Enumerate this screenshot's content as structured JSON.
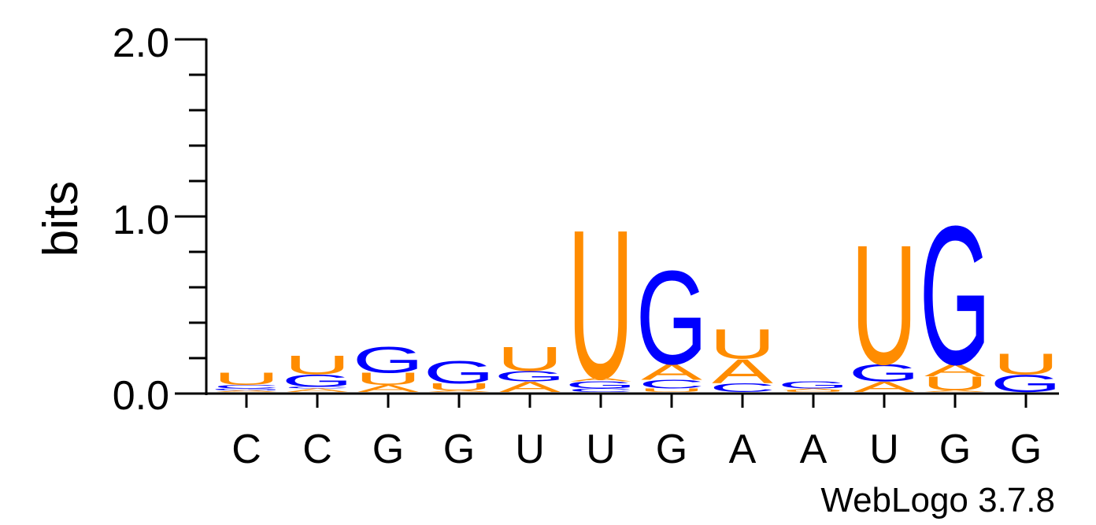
{
  "chart_data": {
    "type": "sequence-logo",
    "ylabel": "bits",
    "ylim": [
      0,
      2
    ],
    "yticks": [
      "0.0",
      "1.0",
      "2.0"
    ],
    "positions": [
      "C",
      "C",
      "G",
      "G",
      "U",
      "U",
      "G",
      "A",
      "A",
      "U",
      "G",
      "G"
    ],
    "stacks": [
      [
        {
          "letter": "A",
          "bits": 0.01
        },
        {
          "letter": "G",
          "bits": 0.01
        },
        {
          "letter": "C",
          "bits": 0.02
        },
        {
          "letter": "U",
          "bits": 0.07
        }
      ],
      [
        {
          "letter": "A",
          "bits": 0.02
        },
        {
          "letter": "C",
          "bits": 0.01
        },
        {
          "letter": "G",
          "bits": 0.07
        },
        {
          "letter": "U",
          "bits": 0.11
        }
      ],
      [
        {
          "letter": "A",
          "bits": 0.04
        },
        {
          "letter": "U",
          "bits": 0.07
        },
        {
          "letter": "G",
          "bits": 0.15
        }
      ],
      [
        {
          "letter": "A",
          "bits": 0.01
        },
        {
          "letter": "U",
          "bits": 0.04
        },
        {
          "letter": "G",
          "bits": 0.13
        }
      ],
      [
        {
          "letter": "A",
          "bits": 0.06
        },
        {
          "letter": "G",
          "bits": 0.06
        },
        {
          "letter": "U",
          "bits": 0.14
        }
      ],
      [
        {
          "letter": "C",
          "bits": 0.02
        },
        {
          "letter": "G",
          "bits": 0.04
        },
        {
          "letter": "A",
          "bits": 0.02
        },
        {
          "letter": "U",
          "bits": 0.86
        }
      ],
      [
        {
          "letter": "U",
          "bits": 0.02
        },
        {
          "letter": "C",
          "bits": 0.05
        },
        {
          "letter": "A",
          "bits": 0.09
        },
        {
          "letter": "G",
          "bits": 0.54
        }
      ],
      [
        {
          "letter": "C",
          "bits": 0.05
        },
        {
          "letter": "A",
          "bits": 0.14
        },
        {
          "letter": "U",
          "bits": 0.17
        }
      ],
      [
        {
          "letter": "U",
          "bits": 0.01
        },
        {
          "letter": "A",
          "bits": 0.01
        },
        {
          "letter": "G",
          "bits": 0.04
        }
      ],
      [
        {
          "letter": "A",
          "bits": 0.06
        },
        {
          "letter": "G",
          "bits": 0.1
        },
        {
          "letter": "U",
          "bits": 0.69
        }
      ],
      [
        {
          "letter": "A",
          "bits": 0.01
        },
        {
          "letter": "U",
          "bits": 0.08
        },
        {
          "letter": "A",
          "bits": 0.07
        },
        {
          "letter": "G",
          "bits": 0.8
        }
      ],
      [
        {
          "letter": "G",
          "bits": 0.1
        },
        {
          "letter": "U",
          "bits": 0.12
        }
      ]
    ],
    "colors": {
      "A": "#ff8c00",
      "U": "#ff8c00",
      "G": "#0000ff",
      "C": "#0000ff"
    },
    "credit": "WebLogo 3.7.8"
  }
}
